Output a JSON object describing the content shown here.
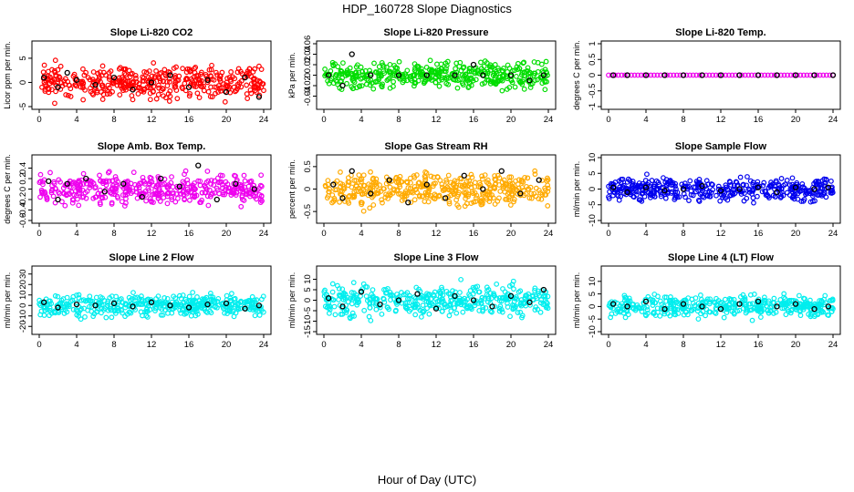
{
  "figure": {
    "title": "HDP_160728  Slope Diagnostics",
    "xlabel": "Hour of Day (UTC)"
  },
  "chart_data": [
    {
      "type": "scatter",
      "title": "Slope Li-820 CO2",
      "ylabel": "Licor ppm per min.",
      "xlim": [
        0,
        24
      ],
      "ylim": [
        -5,
        8
      ],
      "x_ticks": [
        0,
        4,
        8,
        12,
        16,
        20,
        24
      ],
      "y_ticks": [
        -5,
        0,
        5
      ],
      "color": "#ff0000",
      "spread": 2.0,
      "seed": 11,
      "series": [
        {
          "values": [
            [
              0.5,
              1.0
            ],
            [
              2,
              -1
            ],
            [
              3,
              2
            ],
            [
              4,
              0.5
            ],
            [
              6,
              -0.5
            ],
            [
              8,
              1
            ],
            [
              10,
              -1.5
            ],
            [
              12,
              0
            ],
            [
              14,
              1.5
            ],
            [
              16,
              -1
            ],
            [
              18,
              0.5
            ],
            [
              20,
              -2
            ],
            [
              22,
              1
            ],
            [
              23.5,
              -3
            ]
          ]
        }
      ]
    },
    {
      "type": "scatter",
      "title": "Slope Li-820 Pressure",
      "ylabel": "kPa per min.",
      "xlim": [
        0,
        24
      ],
      "ylim": [
        -0.06,
        0.06
      ],
      "x_ticks": [
        0,
        4,
        8,
        12,
        16,
        20,
        24
      ],
      "y_ticks": [
        -0.04,
        -0.02,
        0.0,
        0.02,
        0.04,
        0.06
      ],
      "color": "#00dd00",
      "spread": 0.015,
      "seed": 23,
      "series": [
        {
          "values": [
            [
              0.5,
              0.0
            ],
            [
              2,
              -0.02
            ],
            [
              3,
              0.04
            ],
            [
              5,
              0.0
            ],
            [
              8,
              0.0
            ],
            [
              11,
              0.0
            ],
            [
              14,
              0.0
            ],
            [
              16,
              0.02
            ],
            [
              17,
              0.0
            ],
            [
              20,
              0.0
            ],
            [
              22,
              -0.01
            ],
            [
              23.5,
              0.0
            ]
          ]
        }
      ]
    },
    {
      "type": "scatter",
      "title": "Slope Li-820 Temp.",
      "ylabel": "degrees C per min.",
      "xlim": [
        0,
        24
      ],
      "ylim": [
        -1,
        1
      ],
      "x_ticks": [
        0,
        4,
        8,
        12,
        16,
        20,
        24
      ],
      "y_ticks": [
        -1.0,
        -0.5,
        0.0,
        0.5,
        1.0
      ],
      "color": "#ee00ee",
      "spread": 0.0,
      "seed": 31,
      "series": [
        {
          "values": [
            [
              0.5,
              0
            ],
            [
              2,
              0
            ],
            [
              4,
              0
            ],
            [
              6,
              0
            ],
            [
              8,
              0
            ],
            [
              10,
              0
            ],
            [
              12,
              0
            ],
            [
              14,
              0
            ],
            [
              16,
              0
            ],
            [
              18,
              0
            ],
            [
              20,
              0
            ],
            [
              22,
              0
            ],
            [
              24,
              0
            ]
          ]
        }
      ]
    },
    {
      "type": "scatter",
      "title": "Slope Amb. Box Temp.",
      "ylabel": "degrees C per min.",
      "xlim": [
        0,
        24
      ],
      "ylim": [
        -0.6,
        0.6
      ],
      "x_ticks": [
        0,
        4,
        8,
        12,
        16,
        20,
        24
      ],
      "y_ticks": [
        -0.6,
        -0.4,
        -0.2,
        0.0,
        0.2,
        0.4
      ],
      "color": "#ee00ee",
      "spread": 0.17,
      "seed": 47,
      "series": [
        {
          "values": [
            [
              1,
              0.15
            ],
            [
              2,
              -0.2
            ],
            [
              3,
              0.1
            ],
            [
              5,
              0.2
            ],
            [
              7,
              -0.05
            ],
            [
              9,
              0.1
            ],
            [
              11,
              -0.15
            ],
            [
              13,
              0.2
            ],
            [
              15,
              0.05
            ],
            [
              17,
              0.45
            ],
            [
              19,
              -0.2
            ],
            [
              21,
              0.1
            ],
            [
              23,
              0.0
            ]
          ]
        }
      ]
    },
    {
      "type": "scatter",
      "title": "Slope Gas Stream RH",
      "ylabel": "percent per min.",
      "xlim": [
        0,
        24
      ],
      "ylim": [
        -0.7,
        0.7
      ],
      "x_ticks": [
        0,
        4,
        8,
        12,
        16,
        20,
        24
      ],
      "y_ticks": [
        -0.5,
        0.0,
        0.5
      ],
      "color": "#ffaa00",
      "spread": 0.22,
      "seed": 53,
      "series": [
        {
          "values": [
            [
              1,
              0.1
            ],
            [
              2,
              -0.2
            ],
            [
              3,
              0.4
            ],
            [
              5,
              -0.1
            ],
            [
              7,
              0.2
            ],
            [
              9,
              -0.3
            ],
            [
              11,
              0.1
            ],
            [
              13,
              -0.2
            ],
            [
              15,
              0.3
            ],
            [
              17,
              0.0
            ],
            [
              19,
              0.4
            ],
            [
              21,
              -0.1
            ],
            [
              23,
              0.2
            ]
          ]
        }
      ]
    },
    {
      "type": "scatter",
      "title": "Slope Sample Flow",
      "ylabel": "ml/min per min.",
      "xlim": [
        0,
        24
      ],
      "ylim": [
        -10,
        10
      ],
      "x_ticks": [
        0,
        4,
        8,
        12,
        16,
        20,
        24
      ],
      "y_ticks": [
        -10,
        -5,
        0,
        5,
        10
      ],
      "color": "#0000ee",
      "spread": 2.2,
      "seed": 67,
      "series": [
        {
          "values": [
            [
              0.5,
              0.5
            ],
            [
              2,
              -1
            ],
            [
              4,
              0.5
            ],
            [
              6,
              -0.5
            ],
            [
              8,
              0.0
            ],
            [
              10,
              1
            ],
            [
              12,
              -0.5
            ],
            [
              14,
              0.0
            ],
            [
              16,
              0.5
            ],
            [
              18,
              -1
            ],
            [
              20,
              0.5
            ],
            [
              22,
              0.0
            ],
            [
              23.5,
              0.5
            ]
          ]
        }
      ]
    },
    {
      "type": "scatter",
      "title": "Slope Line 2 Flow",
      "ylabel": "ml/min per min.",
      "xlim": [
        0,
        24
      ],
      "ylim": [
        -25,
        35
      ],
      "x_ticks": [
        0,
        4,
        8,
        12,
        16,
        20,
        24
      ],
      "y_ticks": [
        -20,
        -10,
        0,
        10,
        20,
        30
      ],
      "color": "#00eeee",
      "spread": 6.0,
      "seed": 71,
      "series": [
        {
          "values": [
            [
              0.5,
              3
            ],
            [
              2,
              -2
            ],
            [
              4,
              1
            ],
            [
              6,
              0
            ],
            [
              8,
              2
            ],
            [
              10,
              -1
            ],
            [
              12,
              3
            ],
            [
              14,
              0
            ],
            [
              16,
              -2
            ],
            [
              18,
              1
            ],
            [
              20,
              2
            ],
            [
              22,
              -3
            ],
            [
              23.5,
              0
            ]
          ]
        }
      ]
    },
    {
      "type": "scatter",
      "title": "Slope Line 3 Flow",
      "ylabel": "ml/min per min.",
      "xlim": [
        0,
        24
      ],
      "ylim": [
        -15,
        15
      ],
      "x_ticks": [
        0,
        4,
        8,
        12,
        16,
        20,
        24
      ],
      "y_ticks": [
        -15,
        -10,
        -5,
        0,
        5,
        10
      ],
      "color": "#00eeee",
      "spread": 4.5,
      "seed": 83,
      "series": [
        {
          "values": [
            [
              0.5,
              1
            ],
            [
              2,
              -3
            ],
            [
              4,
              4
            ],
            [
              6,
              -2
            ],
            [
              8,
              0
            ],
            [
              10,
              3
            ],
            [
              12,
              -4
            ],
            [
              14,
              2
            ],
            [
              16,
              0
            ],
            [
              18,
              -3
            ],
            [
              20,
              2
            ],
            [
              22,
              -1
            ],
            [
              23.5,
              5
            ]
          ]
        }
      ]
    },
    {
      "type": "scatter",
      "title": "Slope Line 4 (LT) Flow",
      "ylabel": "ml/min per min.",
      "xlim": [
        0,
        24
      ],
      "ylim": [
        -10,
        15
      ],
      "x_ticks": [
        0,
        4,
        8,
        12,
        16,
        20,
        24
      ],
      "y_ticks": [
        -10,
        -5,
        0,
        5,
        10
      ],
      "color": "#00eeee",
      "spread": 2.5,
      "seed": 97,
      "series": [
        {
          "values": [
            [
              0.5,
              1
            ],
            [
              2,
              0
            ],
            [
              4,
              2
            ],
            [
              6,
              -1
            ],
            [
              8,
              1
            ],
            [
              10,
              0
            ],
            [
              12,
              -1
            ],
            [
              14,
              1
            ],
            [
              16,
              2
            ],
            [
              18,
              0
            ],
            [
              20,
              1
            ],
            [
              22,
              -1
            ],
            [
              23.5,
              0
            ]
          ]
        }
      ]
    }
  ]
}
